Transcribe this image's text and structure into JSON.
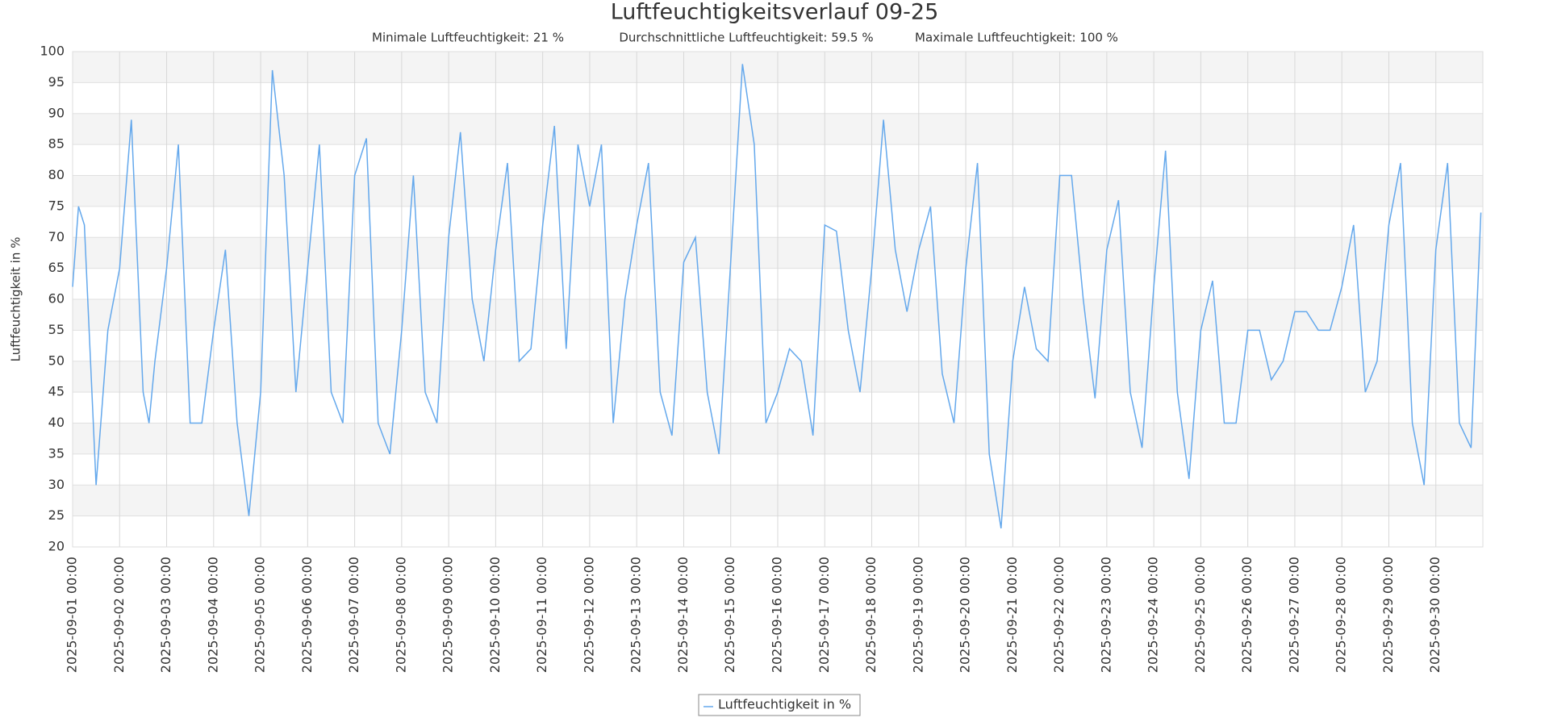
{
  "chart_data": {
    "type": "line",
    "title": "Luftfeuchtigkeitsverlauf 09-25",
    "subtitle": [
      "Minimale Luftfeuchtigkeit: 21 %",
      "Durchschnittliche Luftfeuchtigkeit: 59.5 %",
      "Maximale Luftfeuchtigkeit: 100 %"
    ],
    "y_label": "Luftfeuchtigkeit in %",
    "x": [
      "2025-09-01 00:00",
      "2025-09-01 03:00",
      "2025-09-01 06:00",
      "2025-09-01 12:00",
      "2025-09-01 18:00",
      "2025-09-02 00:00",
      "2025-09-02 06:00",
      "2025-09-02 12:00",
      "2025-09-02 15:00",
      "2025-09-02 18:00",
      "2025-09-03 00:00",
      "2025-09-03 06:00",
      "2025-09-03 12:00",
      "2025-09-03 18:00",
      "2025-09-04 00:00",
      "2025-09-04 06:00",
      "2025-09-04 12:00",
      "2025-09-04 18:00",
      "2025-09-05 00:00",
      "2025-09-05 06:00",
      "2025-09-05 12:00",
      "2025-09-05 18:00",
      "2025-09-06 00:00",
      "2025-09-06 06:00",
      "2025-09-06 12:00",
      "2025-09-06 18:00",
      "2025-09-07 00:00",
      "2025-09-07 06:00",
      "2025-09-07 12:00",
      "2025-09-07 18:00",
      "2025-09-08 00:00",
      "2025-09-08 06:00",
      "2025-09-08 12:00",
      "2025-09-08 18:00",
      "2025-09-09 00:00",
      "2025-09-09 06:00",
      "2025-09-09 12:00",
      "2025-09-09 18:00",
      "2025-09-10 00:00",
      "2025-09-10 06:00",
      "2025-09-10 12:00",
      "2025-09-10 18:00",
      "2025-09-11 00:00",
      "2025-09-11 06:00",
      "2025-09-11 12:00",
      "2025-09-11 18:00",
      "2025-09-12 00:00",
      "2025-09-12 06:00",
      "2025-09-12 12:00",
      "2025-09-12 18:00",
      "2025-09-13 00:00",
      "2025-09-13 06:00",
      "2025-09-13 12:00",
      "2025-09-13 18:00",
      "2025-09-14 00:00",
      "2025-09-14 06:00",
      "2025-09-14 12:00",
      "2025-09-14 18:00",
      "2025-09-15 00:00",
      "2025-09-15 06:00",
      "2025-09-15 12:00",
      "2025-09-15 18:00",
      "2025-09-16 00:00",
      "2025-09-16 06:00",
      "2025-09-16 12:00",
      "2025-09-16 18:00",
      "2025-09-17 00:00",
      "2025-09-17 06:00",
      "2025-09-17 12:00",
      "2025-09-17 18:00",
      "2025-09-18 00:00",
      "2025-09-18 06:00",
      "2025-09-18 12:00",
      "2025-09-18 18:00",
      "2025-09-19 00:00",
      "2025-09-19 06:00",
      "2025-09-19 12:00",
      "2025-09-19 18:00",
      "2025-09-20 00:00",
      "2025-09-20 06:00",
      "2025-09-20 12:00",
      "2025-09-20 18:00",
      "2025-09-21 00:00",
      "2025-09-21 06:00",
      "2025-09-21 12:00",
      "2025-09-21 18:00",
      "2025-09-22 00:00",
      "2025-09-22 06:00",
      "2025-09-22 12:00",
      "2025-09-22 18:00",
      "2025-09-23 00:00",
      "2025-09-23 06:00",
      "2025-09-23 12:00",
      "2025-09-23 18:00",
      "2025-09-24 00:00",
      "2025-09-24 06:00",
      "2025-09-24 12:00",
      "2025-09-24 18:00",
      "2025-09-25 00:00",
      "2025-09-25 06:00",
      "2025-09-25 12:00",
      "2025-09-25 18:00",
      "2025-09-26 00:00",
      "2025-09-26 06:00",
      "2025-09-26 12:00",
      "2025-09-26 18:00",
      "2025-09-27 00:00",
      "2025-09-27 06:00",
      "2025-09-27 12:00",
      "2025-09-27 18:00",
      "2025-09-28 00:00",
      "2025-09-28 06:00",
      "2025-09-28 12:00",
      "2025-09-28 18:00",
      "2025-09-29 00:00",
      "2025-09-29 06:00",
      "2025-09-29 12:00",
      "2025-09-29 18:00",
      "2025-09-30 00:00",
      "2025-09-30 06:00",
      "2025-09-30 12:00",
      "2025-09-30 18:00",
      "2025-09-30 23:00"
    ],
    "series": [
      {
        "name": "Luftfeuchtigkeit in %",
        "color": "#64a8ec",
        "values": [
          62,
          75,
          72,
          30,
          55,
          65,
          89,
          45,
          40,
          50,
          65,
          85,
          40,
          40,
          55,
          68,
          40,
          25,
          45,
          97,
          80,
          45,
          65,
          85,
          45,
          40,
          80,
          86,
          40,
          35,
          55,
          80,
          45,
          40,
          70,
          87,
          60,
          50,
          68,
          82,
          50,
          52,
          72,
          88,
          52,
          85,
          75,
          85,
          40,
          60,
          72,
          82,
          45,
          38,
          66,
          70,
          45,
          35,
          66,
          98,
          85,
          40,
          45,
          52,
          50,
          38,
          72,
          71,
          55,
          45,
          65,
          89,
          68,
          58,
          68,
          75,
          48,
          40,
          65,
          82,
          35,
          23,
          50,
          62,
          52,
          50,
          80,
          80,
          60,
          44,
          68,
          76,
          45,
          36,
          62,
          84,
          45,
          31,
          55,
          63,
          40,
          40,
          55,
          55,
          47,
          50,
          58,
          58,
          55,
          55,
          62,
          72,
          45,
          50,
          72,
          82,
          40,
          30,
          68,
          82,
          40,
          36,
          74
        ]
      }
    ],
    "xlim": [
      "2025-09-01 00:00",
      "2025-10-01 00:00"
    ],
    "xticks": [
      "2025-09-01 00:00",
      "2025-09-02 00:00",
      "2025-09-03 00:00",
      "2025-09-04 00:00",
      "2025-09-05 00:00",
      "2025-09-06 00:00",
      "2025-09-07 00:00",
      "2025-09-08 00:00",
      "2025-09-09 00:00",
      "2025-09-10 00:00",
      "2025-09-11 00:00",
      "2025-09-12 00:00",
      "2025-09-13 00:00",
      "2025-09-14 00:00",
      "2025-09-15 00:00",
      "2025-09-16 00:00",
      "2025-09-17 00:00",
      "2025-09-18 00:00",
      "2025-09-19 00:00",
      "2025-09-20 00:00",
      "2025-09-21 00:00",
      "2025-09-22 00:00",
      "2025-09-23 00:00",
      "2025-09-24 00:00",
      "2025-09-25 00:00",
      "2025-09-26 00:00",
      "2025-09-27 00:00",
      "2025-09-28 00:00",
      "2025-09-29 00:00",
      "2025-09-30 00:00"
    ],
    "ylim": [
      20,
      100
    ],
    "yticks": [
      20,
      25,
      30,
      35,
      40,
      45,
      50,
      55,
      60,
      65,
      70,
      75,
      80,
      85,
      90,
      95,
      100
    ],
    "grid": true,
    "legend": "bottom"
  }
}
